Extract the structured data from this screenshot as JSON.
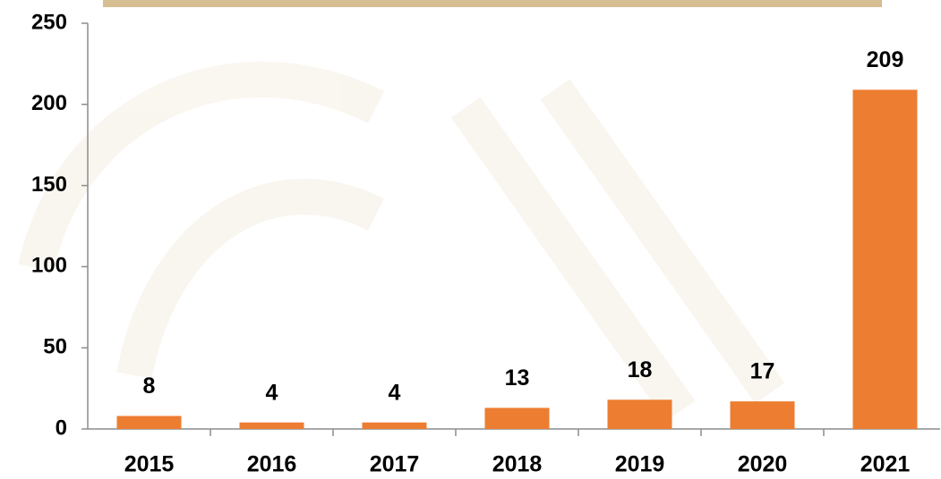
{
  "chart_data": {
    "type": "bar",
    "categories": [
      "2015",
      "2016",
      "2017",
      "2018",
      "2019",
      "2020",
      "2021"
    ],
    "values": [
      8,
      4,
      4,
      13,
      18,
      17,
      209
    ],
    "color": "#ed7d31",
    "ylim": [
      0,
      250
    ],
    "yticks": [
      0,
      50,
      100,
      150,
      200,
      250
    ],
    "grid": false
  }
}
